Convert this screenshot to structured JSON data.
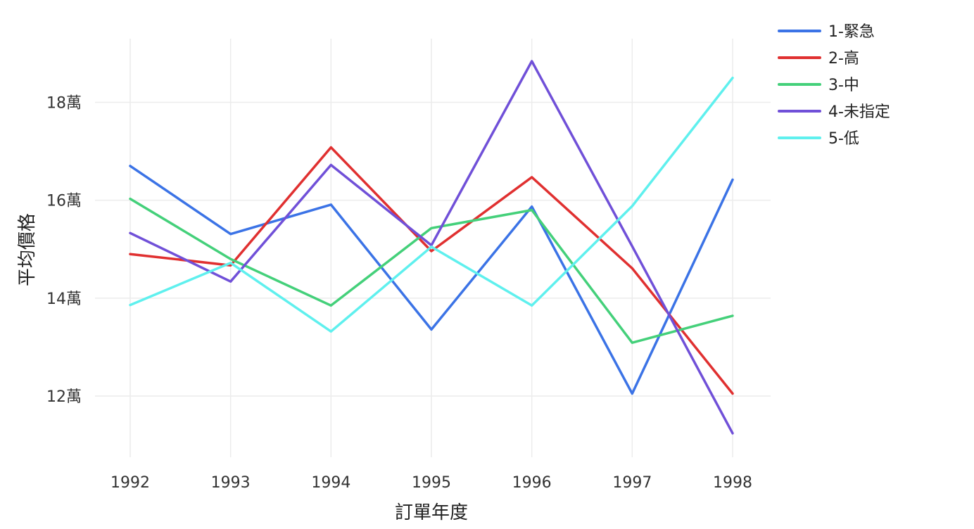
{
  "chart_data": {
    "type": "line",
    "xlabel": "訂單年度",
    "ylabel": "平均價格",
    "x": [
      1992,
      1993,
      1994,
      1995,
      1996,
      1997,
      1998
    ],
    "x_tick_labels": [
      "1992",
      "1993",
      "1994",
      "1995",
      "1996",
      "1997",
      "1998"
    ],
    "y_ticks": [
      120000,
      140000,
      160000,
      180000
    ],
    "y_tick_labels": [
      "12萬",
      "14萬",
      "16萬",
      "18萬"
    ],
    "ylim": [
      107500,
      193000
    ],
    "grid": true,
    "legend_position": "top-right",
    "series": [
      {
        "name": "1-緊急",
        "color": "#3b73e6",
        "values": [
          167000,
          153100,
          159100,
          133600,
          158700,
          120500,
          164200
        ]
      },
      {
        "name": "2-高",
        "color": "#e03030",
        "values": [
          149000,
          146700,
          170800,
          149600,
          164700,
          146100,
          120500
        ]
      },
      {
        "name": "3-中",
        "color": "#44d07a",
        "values": [
          160300,
          148000,
          138500,
          154300,
          158000,
          130900,
          136400
        ]
      },
      {
        "name": "4-未指定",
        "color": "#7050d8",
        "values": [
          153300,
          143400,
          167200,
          150800,
          188400,
          150600,
          112400
        ]
      },
      {
        "name": "5-低",
        "color": "#5ff0ee",
        "values": [
          138600,
          147200,
          133200,
          150500,
          138500,
          158800,
          185000
        ]
      }
    ]
  }
}
